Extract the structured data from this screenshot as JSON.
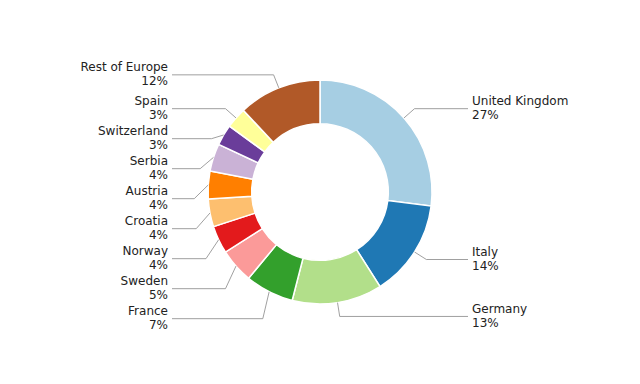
{
  "chart_data": {
    "type": "donut",
    "categories": [
      "United Kingdom",
      "Italy",
      "Germany",
      "France",
      "Sweden",
      "Norway",
      "Croatia",
      "Austria",
      "Serbia",
      "Switzerland",
      "Spain",
      "Rest of Europe"
    ],
    "values": [
      27,
      14,
      13,
      7,
      5,
      4,
      4,
      4,
      4,
      3,
      3,
      12
    ],
    "value_labels": [
      "27%",
      "14%",
      "13%",
      "7%",
      "5%",
      "4%",
      "4%",
      "4%",
      "4%",
      "3%",
      "3%",
      "12%"
    ],
    "data_labels": true
  }
}
